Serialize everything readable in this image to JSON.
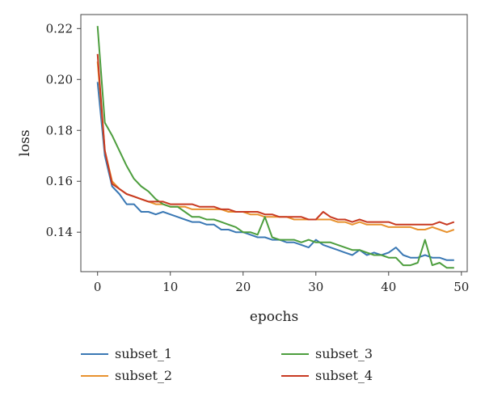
{
  "chart_data": {
    "type": "line",
    "xlabel": "epochs",
    "ylabel": "loss",
    "xlim": [
      -2.3,
      50.8
    ],
    "ylim": [
      0.1245,
      0.2255
    ],
    "xticks": [
      0,
      10,
      20,
      30,
      40,
      50
    ],
    "yticks": [
      0.14,
      0.16,
      0.18,
      0.2,
      0.22
    ],
    "ytick_labels": [
      "0.14",
      "0.16",
      "0.18",
      "0.20",
      "0.22"
    ],
    "grid": false,
    "legend_position": "bottom",
    "x": [
      0,
      1,
      2,
      3,
      4,
      5,
      6,
      7,
      8,
      9,
      10,
      11,
      12,
      13,
      14,
      15,
      16,
      17,
      18,
      19,
      20,
      21,
      22,
      23,
      24,
      25,
      26,
      27,
      28,
      29,
      30,
      31,
      32,
      33,
      34,
      35,
      36,
      37,
      38,
      39,
      40,
      41,
      42,
      43,
      44,
      45,
      46,
      47,
      48,
      49
    ],
    "series": [
      {
        "name": "subset_1",
        "color": "#3a78b4",
        "values": [
          0.199,
          0.17,
          0.158,
          0.155,
          0.151,
          0.151,
          0.148,
          0.148,
          0.147,
          0.148,
          0.147,
          0.146,
          0.145,
          0.144,
          0.144,
          0.143,
          0.143,
          0.141,
          0.141,
          0.14,
          0.14,
          0.139,
          0.138,
          0.138,
          0.137,
          0.137,
          0.136,
          0.136,
          0.135,
          0.134,
          0.137,
          0.135,
          0.134,
          0.133,
          0.132,
          0.131,
          0.133,
          0.131,
          0.132,
          0.131,
          0.132,
          0.134,
          0.131,
          0.13,
          0.13,
          0.131,
          0.13,
          0.13,
          0.129,
          0.129
        ]
      },
      {
        "name": "subset_2",
        "color": "#e8922e",
        "values": [
          0.207,
          0.172,
          0.16,
          0.157,
          0.155,
          0.154,
          0.153,
          0.152,
          0.151,
          0.151,
          0.15,
          0.15,
          0.15,
          0.149,
          0.149,
          0.149,
          0.149,
          0.149,
          0.148,
          0.148,
          0.148,
          0.147,
          0.147,
          0.146,
          0.146,
          0.146,
          0.146,
          0.145,
          0.145,
          0.145,
          0.145,
          0.145,
          0.145,
          0.144,
          0.144,
          0.143,
          0.144,
          0.143,
          0.143,
          0.143,
          0.142,
          0.142,
          0.142,
          0.142,
          0.141,
          0.141,
          0.142,
          0.141,
          0.14,
          0.141
        ]
      },
      {
        "name": "subset_3",
        "color": "#4d9e3e",
        "values": [
          0.221,
          0.183,
          0.178,
          0.172,
          0.166,
          0.161,
          0.158,
          0.156,
          0.153,
          0.151,
          0.15,
          0.15,
          0.148,
          0.146,
          0.146,
          0.145,
          0.145,
          0.144,
          0.143,
          0.142,
          0.14,
          0.14,
          0.139,
          0.146,
          0.138,
          0.137,
          0.137,
          0.137,
          0.136,
          0.137,
          0.136,
          0.136,
          0.136,
          0.135,
          0.134,
          0.133,
          0.133,
          0.132,
          0.131,
          0.131,
          0.13,
          0.13,
          0.127,
          0.127,
          0.128,
          0.137,
          0.127,
          0.128,
          0.126,
          0.126
        ]
      },
      {
        "name": "subset_4",
        "color": "#c83a22",
        "values": [
          0.21,
          0.172,
          0.159,
          0.157,
          0.155,
          0.154,
          0.153,
          0.152,
          0.152,
          0.152,
          0.151,
          0.151,
          0.151,
          0.151,
          0.15,
          0.15,
          0.15,
          0.149,
          0.149,
          0.148,
          0.148,
          0.148,
          0.148,
          0.147,
          0.147,
          0.146,
          0.146,
          0.146,
          0.146,
          0.145,
          0.145,
          0.148,
          0.146,
          0.145,
          0.145,
          0.144,
          0.145,
          0.144,
          0.144,
          0.144,
          0.144,
          0.143,
          0.143,
          0.143,
          0.143,
          0.143,
          0.143,
          0.144,
          0.143,
          0.144
        ]
      }
    ],
    "legend_layout": [
      [
        "subset_1",
        "subset_3"
      ],
      [
        "subset_2",
        "subset_4"
      ]
    ]
  }
}
